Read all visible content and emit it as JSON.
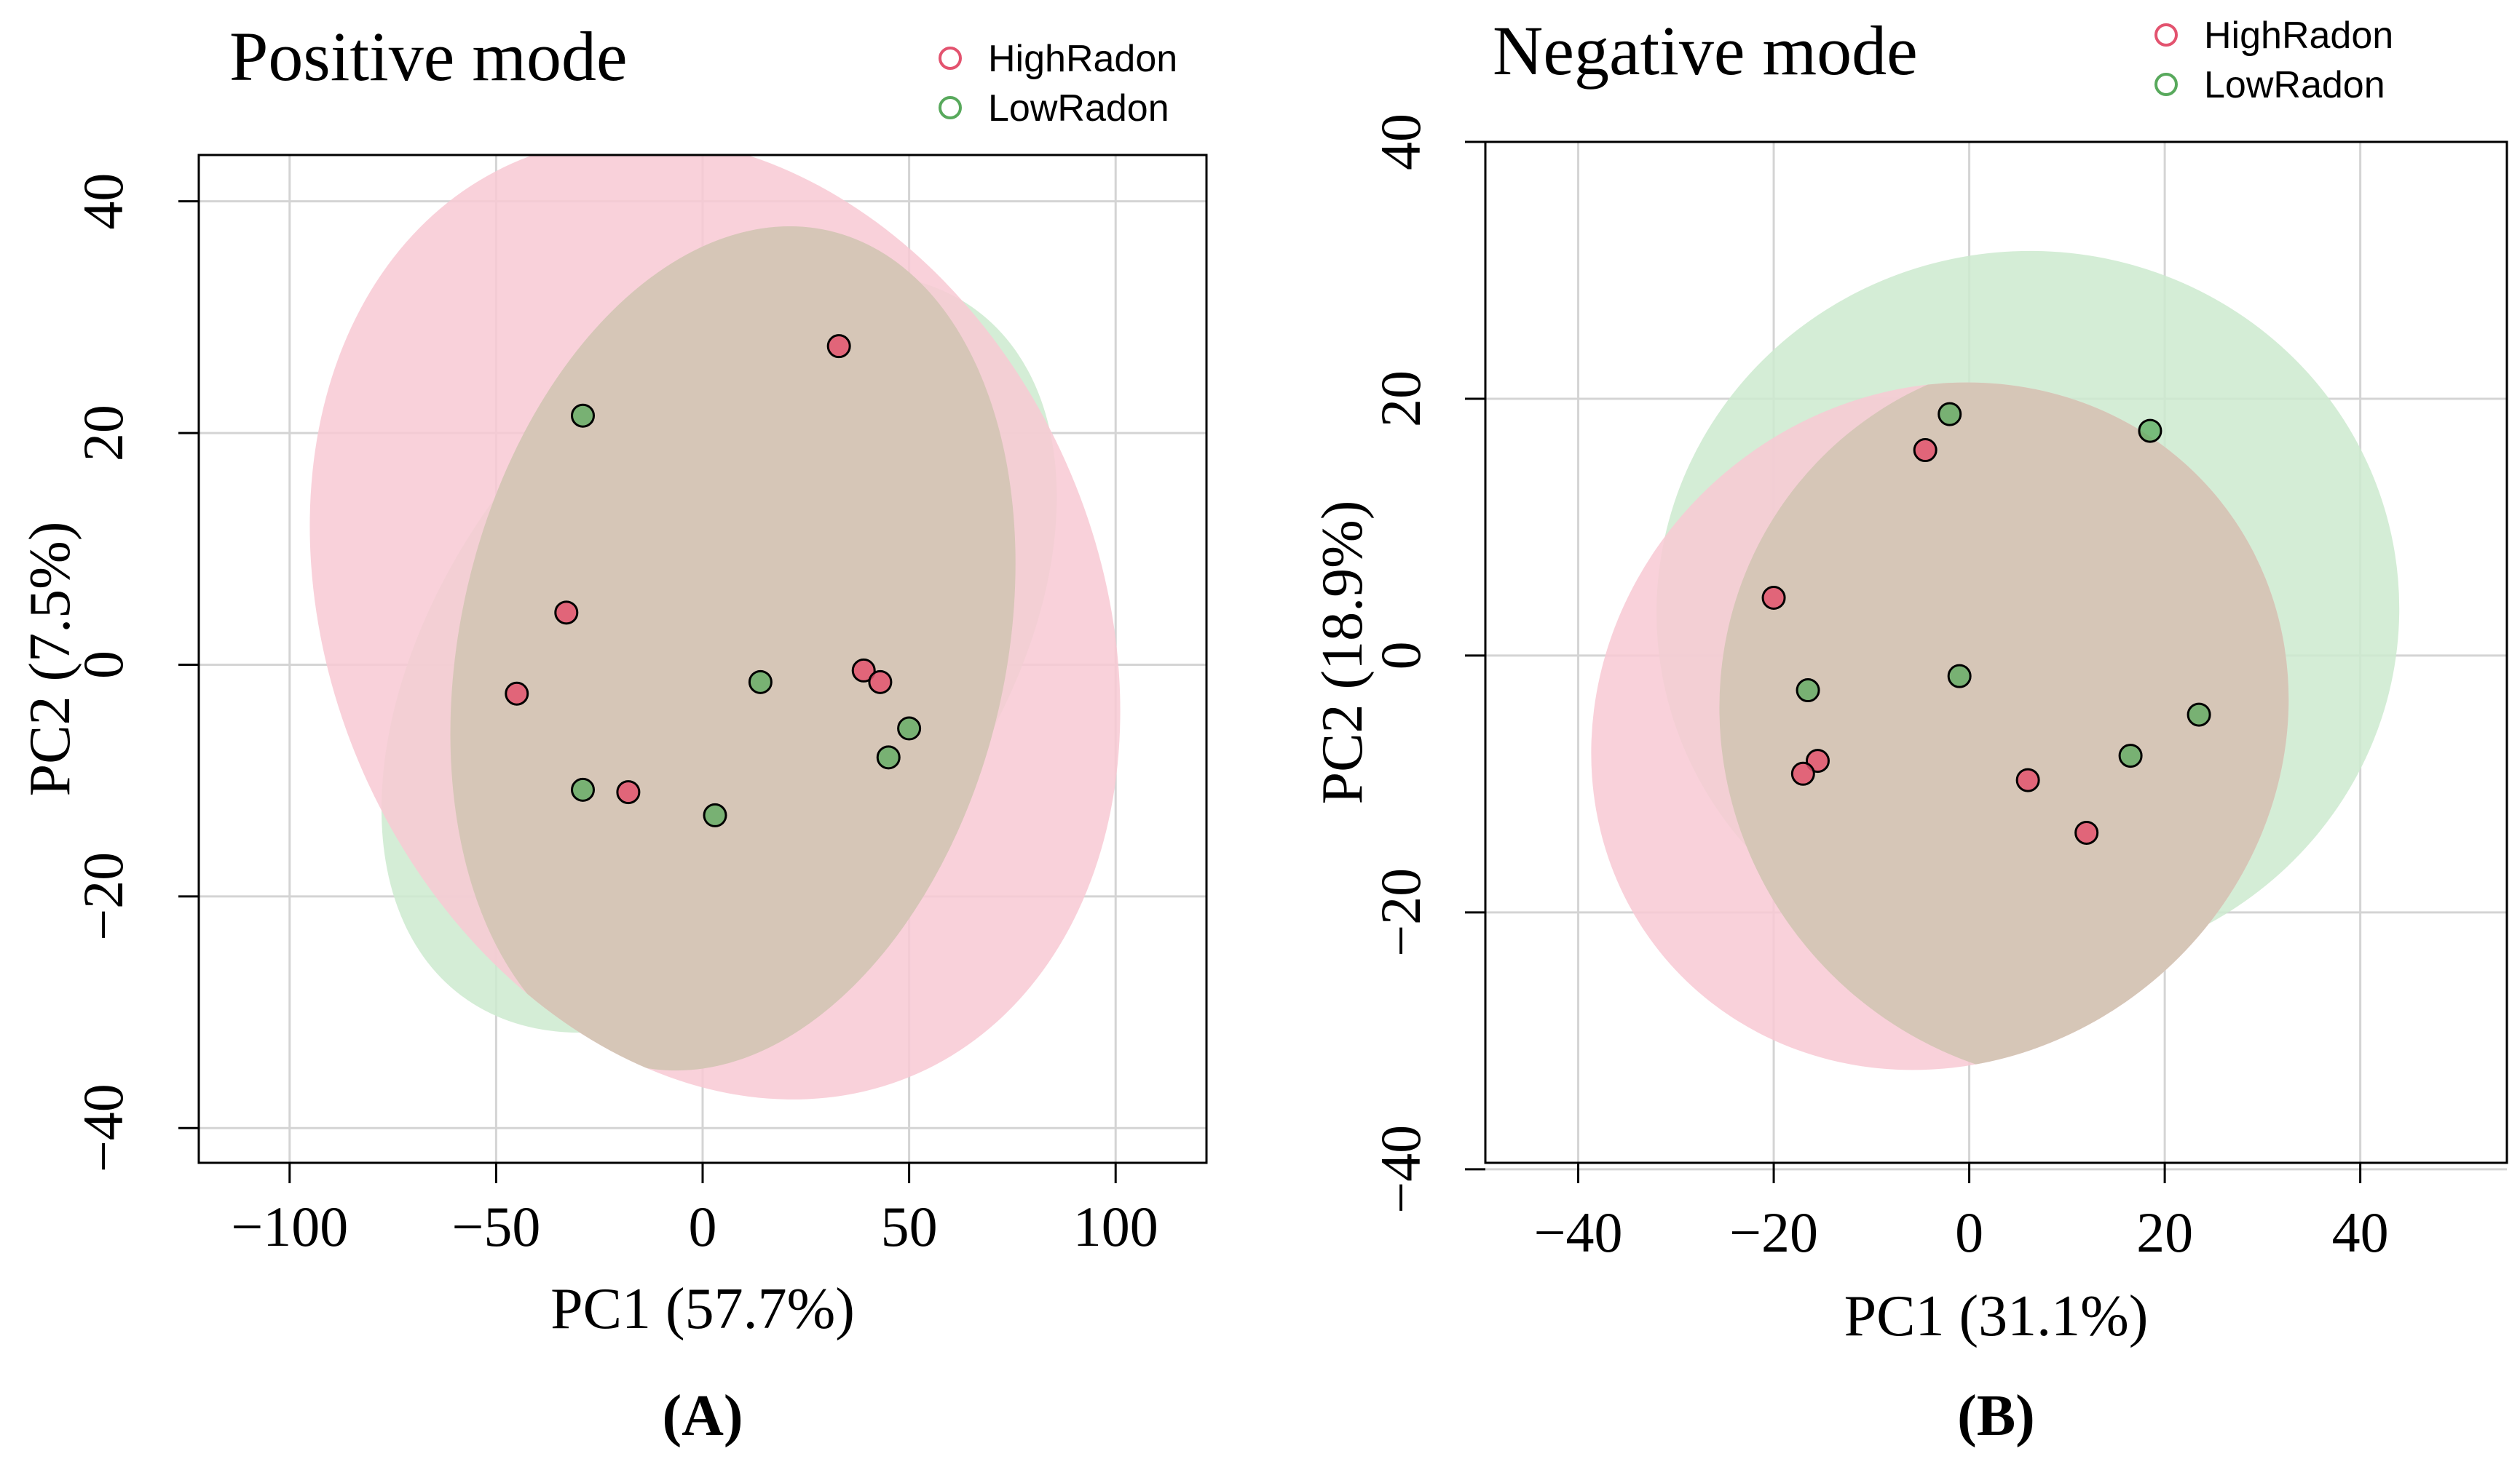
{
  "figure": {
    "colors": {
      "high": "#e3536f",
      "high_fill": "#f8c9d4",
      "low": "#58a95c",
      "low_fill": "#cdeacf",
      "overlap": "#d6c6b7",
      "grid": "#d4d4d4",
      "axis": "#000000"
    }
  },
  "chart_data": [
    {
      "type": "scatter",
      "panel_label": "(A)",
      "title": "Positive mode",
      "xlabel": "PC1 (57.7%)",
      "ylabel": "PC2 (7.5%)",
      "xlim": [
        -122,
        122
      ],
      "ylim": [
        -43,
        44
      ],
      "xticks": [
        -100,
        -50,
        0,
        50,
        100
      ],
      "yticks": [
        -40,
        -20,
        0,
        20,
        40
      ],
      "xtick_labels": [
        "−100",
        "−50",
        "0",
        "50",
        "100"
      ],
      "ytick_labels": [
        "−40",
        "−20",
        "0",
        "20",
        "40"
      ],
      "grid": true,
      "legend": [
        "HighRadon",
        "LowRadon"
      ],
      "legend_position": "top-right",
      "series": [
        {
          "name": "HighRadon",
          "points": [
            [
              33,
              27.5
            ],
            [
              -33,
              4.5
            ],
            [
              -45,
              -2.5
            ],
            [
              39,
              -0.5
            ],
            [
              43,
              -1.5
            ],
            [
              -18,
              -11
            ]
          ]
        },
        {
          "name": "LowRadon",
          "points": [
            [
              -29,
              21.5
            ],
            [
              14,
              -1.5
            ],
            [
              50,
              -5.5
            ],
            [
              45,
              -8
            ],
            [
              -29,
              -10.8
            ],
            [
              3,
              -13
            ]
          ]
        }
      ],
      "ellipses": [
        {
          "series": "HighRadon",
          "center": [
            3,
            4
          ],
          "semi_axes": [
            93,
            43
          ],
          "angle_deg": 24
        },
        {
          "series": "LowRadon",
          "center": [
            4,
            1
          ],
          "semi_axes": [
            66,
            37
          ],
          "angle_deg": -37
        }
      ]
    },
    {
      "type": "scatter",
      "panel_label": "(B)",
      "title": "Negative mode",
      "xlabel": "PC1 (31.1%)",
      "ylabel": "PC2 (18.9%)",
      "xlim": [
        -49.5,
        55
      ],
      "ylim": [
        -39.5,
        40
      ],
      "xticks": [
        -40,
        -20,
        0,
        20,
        40
      ],
      "yticks": [
        -40,
        -20,
        0,
        20,
        40
      ],
      "xtick_labels": [
        "−40",
        "−20",
        "0",
        "20",
        "40"
      ],
      "ytick_labels": [
        "−40",
        "−20",
        "0",
        "20",
        "40"
      ],
      "grid": true,
      "legend": [
        "HighRadon",
        "LowRadon"
      ],
      "legend_position": "top-right",
      "series": [
        {
          "name": "HighRadon",
          "points": [
            [
              -4.5,
              16
            ],
            [
              -20,
              4.5
            ],
            [
              -15.5,
              -8.2
            ],
            [
              -17,
              -9.2
            ],
            [
              6,
              -9.7
            ],
            [
              12,
              -13.8
            ]
          ]
        },
        {
          "name": "LowRadon",
          "points": [
            [
              -2,
              18.8
            ],
            [
              18.5,
              17.5
            ],
            [
              -16.5,
              -2.7
            ],
            [
              -1,
              -1.6
            ],
            [
              23.5,
              -4.6
            ],
            [
              16.5,
              -7.8
            ]
          ]
        }
      ],
      "ellipses": [
        {
          "series": "HighRadon",
          "center": [
            -3,
            -5.5
          ],
          "semi_axes": [
            34,
            28
          ],
          "angle_deg": -50
        },
        {
          "series": "LowRadon",
          "center": [
            6,
            3.5
          ],
          "semi_axes": [
            38,
            28
          ],
          "angle_deg": 5
        }
      ]
    }
  ]
}
